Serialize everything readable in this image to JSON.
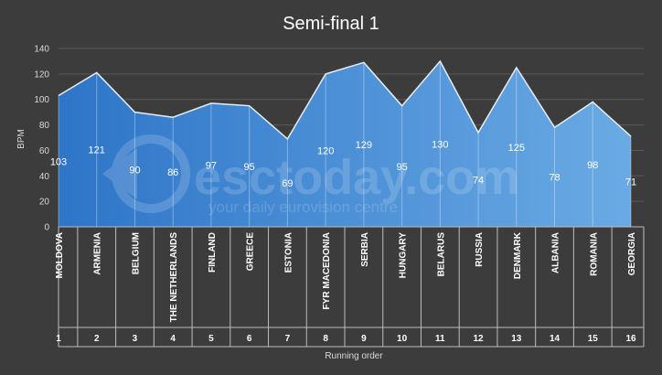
{
  "chart_data": {
    "type": "area",
    "title": "Semi-final 1",
    "ylabel": "BPM",
    "xlabel": "Running order",
    "ylim": [
      0,
      140
    ],
    "yticks": [
      0,
      20,
      40,
      60,
      80,
      100,
      120,
      140
    ],
    "grid": true,
    "legend": "none",
    "categories": [
      "MOLDOVA",
      "ARMENIA",
      "BELGIUM",
      "THE NETHERLANDS",
      "FINLAND",
      "GREECE",
      "ESTONIA",
      "FYR MACEDONIA",
      "SERBIA",
      "HUNGARY",
      "BELARUS",
      "RUSSIA",
      "DENMARK",
      "ALBANIA",
      "ROMANIA",
      "GEORGIA"
    ],
    "running_order": [
      "1",
      "2",
      "3",
      "4",
      "5",
      "6",
      "7",
      "8",
      "9",
      "10",
      "11",
      "12",
      "13",
      "14",
      "15",
      "16"
    ],
    "values": [
      103,
      121,
      90,
      86,
      97,
      95,
      69,
      120,
      129,
      95,
      130,
      74,
      125,
      78,
      98,
      71
    ],
    "colors": {
      "background": "#3c3c3c",
      "fill_start": "#2e75c8",
      "fill_end": "#6aaae4",
      "line": "#e6eef8",
      "grid": "#5a5a5a"
    }
  },
  "watermark": {
    "brand": "esctoday.com",
    "tagline": "your daily eurovision centre"
  }
}
